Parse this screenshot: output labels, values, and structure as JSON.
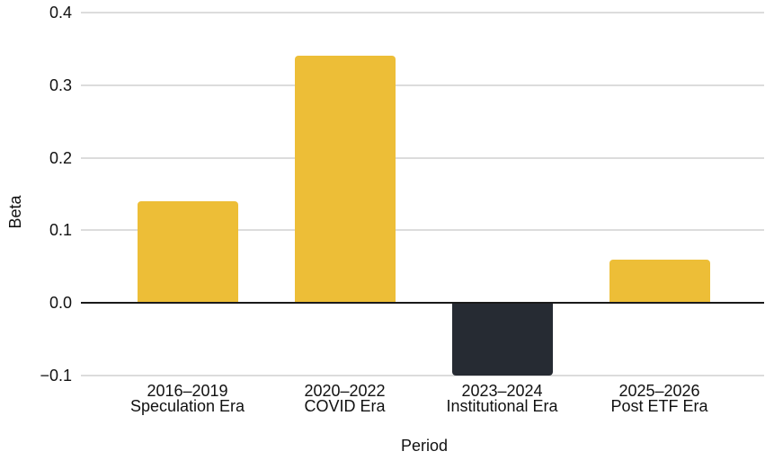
{
  "chart_data": {
    "type": "bar",
    "title": "",
    "xlabel": "Period",
    "ylabel": "Beta",
    "categories": [
      [
        "2016–2019",
        "Speculation Era"
      ],
      [
        "2020–2022",
        "COVID Era"
      ],
      [
        "2023–2024",
        "Institutional Era"
      ],
      [
        "2025–2026",
        "Post ETF Era"
      ]
    ],
    "values": [
      0.14,
      0.34,
      -0.1,
      0.06
    ],
    "bar_colors": [
      "#EDBE37",
      "#EDBE37",
      "#262B33",
      "#EDBE37"
    ],
    "ylim": [
      -0.1,
      0.4
    ],
    "yticks": [
      0.4,
      0.3,
      0.2,
      0.1,
      0,
      -0.1
    ],
    "ytick_labels": [
      "0.4",
      "0.3",
      "0.2",
      "0.1",
      "0.0",
      "−0.1"
    ],
    "grid": true,
    "legend": false,
    "background": "#FFFFFF",
    "colors": {
      "gridline": "#DCDCDC",
      "zero_line": "#1A1A1A",
      "text": "#111111"
    }
  }
}
